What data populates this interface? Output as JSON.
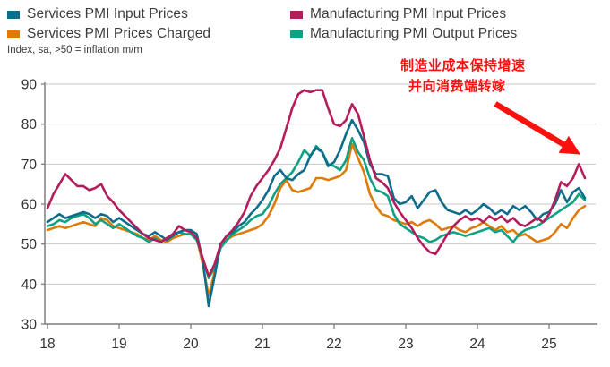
{
  "legend": {
    "items": [
      {
        "label": "Services PMI Input Prices",
        "color": "#0e6d8b"
      },
      {
        "label": "Manufacturing PMI Input Prices",
        "color": "#b41d5b"
      },
      {
        "label": "Services PMI Prices Charged",
        "color": "#dd7b06"
      },
      {
        "label": "Manufacturing PMI Output Prices",
        "color": "#0fa183"
      }
    ]
  },
  "subtitle": "Index, sa, >50 = inflation m/m",
  "annotation": {
    "line1": "制造业成本保持增速",
    "line2": "并向消费端转嫁",
    "color": "#fb100d"
  },
  "chart_data": {
    "type": "line",
    "title": "",
    "x_start": "2018-01",
    "x_frequency": "monthly",
    "x_tick_labels": [
      "18",
      "19",
      "20",
      "21",
      "22",
      "23",
      "24",
      "25"
    ],
    "ylim": [
      30,
      90
    ],
    "yticks": [
      30,
      40,
      50,
      60,
      70,
      80,
      90
    ],
    "grid": "horizontal",
    "legend_position": "top",
    "colors": {
      "grid": "#c9c9c9",
      "axis": "#7f7f7f",
      "tick_text": "#333333"
    },
    "series": [
      {
        "name": "Services PMI Prices Charged",
        "color": "#dd7b06",
        "values": [
          53.5,
          54.0,
          54.5,
          54.0,
          54.5,
          55.0,
          55.5,
          55.0,
          54.5,
          56.5,
          56.0,
          54.5,
          54.0,
          53.5,
          53.0,
          52.5,
          51.5,
          51.0,
          52.0,
          51.0,
          50.5,
          51.5,
          52.0,
          52.5,
          52.5,
          51.5,
          45.0,
          37.0,
          43.0,
          49.5,
          51.0,
          52.0,
          52.5,
          53.0,
          53.5,
          54.0,
          55.0,
          57.0,
          60.0,
          64.0,
          66.0,
          63.5,
          63.0,
          63.5,
          64.0,
          66.5,
          66.5,
          66.0,
          66.5,
          67.0,
          68.5,
          75.0,
          71.5,
          68.0,
          62.5,
          59.5,
          57.5,
          57.0,
          56.0,
          55.5,
          55.0,
          55.5,
          54.5,
          55.5,
          56.0,
          55.0,
          53.5,
          54.0,
          54.5,
          53.5,
          53.0,
          54.0,
          54.5,
          55.5,
          54.5,
          53.5,
          54.5,
          53.0,
          53.5,
          52.0,
          52.5,
          51.5,
          50.5,
          51.0,
          51.5,
          53.0,
          55.0,
          54.0,
          56.5,
          58.5,
          59.5
        ]
      },
      {
        "name": "Manufacturing PMI Output Prices",
        "color": "#0fa183",
        "values": [
          54.5,
          55.0,
          56.0,
          55.5,
          56.5,
          57.0,
          57.5,
          56.5,
          55.0,
          56.0,
          55.0,
          54.0,
          55.0,
          54.0,
          53.0,
          52.0,
          51.5,
          50.5,
          51.5,
          50.5,
          51.5,
          52.5,
          53.0,
          52.5,
          52.5,
          51.0,
          46.5,
          41.5,
          44.0,
          49.0,
          51.0,
          52.5,
          53.5,
          54.5,
          56.0,
          57.0,
          57.5,
          59.5,
          62.5,
          65.0,
          66.5,
          68.0,
          70.5,
          73.5,
          72.0,
          74.5,
          73.0,
          70.0,
          69.5,
          68.5,
          71.0,
          76.5,
          73.0,
          71.0,
          66.5,
          63.5,
          63.0,
          62.0,
          57.5,
          55.0,
          54.0,
          53.0,
          52.0,
          51.5,
          50.5,
          51.0,
          52.0,
          52.5,
          53.0,
          52.5,
          52.0,
          52.5,
          53.0,
          53.5,
          54.0,
          53.0,
          53.5,
          52.0,
          50.5,
          52.5,
          53.5,
          54.0,
          54.5,
          55.5,
          56.5,
          57.5,
          58.5,
          59.5,
          60.5,
          62.5,
          61.0
        ]
      },
      {
        "name": "Services PMI Input Prices",
        "color": "#0e6d8b",
        "values": [
          55.5,
          56.5,
          57.5,
          56.5,
          57.0,
          57.5,
          58.0,
          57.5,
          56.5,
          57.5,
          57.0,
          55.5,
          56.5,
          55.5,
          54.5,
          53.5,
          52.5,
          52.0,
          53.0,
          52.0,
          51.0,
          52.0,
          53.0,
          53.5,
          53.5,
          52.5,
          46.0,
          34.5,
          42.0,
          50.0,
          52.0,
          53.0,
          54.5,
          55.5,
          57.5,
          59.0,
          61.0,
          63.5,
          67.0,
          68.5,
          66.5,
          66.0,
          67.5,
          68.5,
          72.0,
          74.0,
          73.0,
          69.5,
          70.5,
          73.5,
          77.5,
          81.0,
          78.5,
          75.5,
          70.0,
          67.5,
          67.5,
          67.0,
          61.5,
          60.0,
          60.5,
          62.0,
          59.0,
          61.0,
          63.0,
          63.5,
          60.5,
          58.5,
          58.0,
          57.5,
          58.5,
          57.5,
          58.5,
          60.0,
          59.0,
          57.5,
          58.5,
          57.5,
          59.5,
          58.5,
          59.5,
          58.0,
          56.0,
          57.5,
          58.0,
          60.0,
          63.5,
          60.5,
          63.0,
          64.0,
          61.5
        ]
      },
      {
        "name": "Manufacturing PMI Input Prices",
        "color": "#b41d5b",
        "values": [
          59.0,
          62.5,
          65.0,
          67.5,
          66.0,
          64.5,
          64.5,
          63.5,
          64.0,
          65.0,
          62.0,
          60.5,
          58.5,
          57.0,
          55.5,
          54.0,
          52.5,
          51.5,
          51.0,
          50.5,
          51.5,
          52.5,
          54.5,
          53.5,
          53.0,
          51.5,
          46.5,
          42.0,
          45.0,
          50.0,
          52.0,
          53.5,
          55.5,
          58.0,
          62.0,
          64.5,
          66.5,
          68.5,
          71.0,
          74.0,
          79.0,
          84.0,
          87.5,
          88.5,
          88.0,
          88.5,
          88.5,
          84.0,
          80.0,
          79.5,
          81.0,
          85.0,
          82.5,
          77.0,
          71.0,
          66.5,
          65.5,
          64.0,
          60.5,
          58.0,
          56.0,
          54.0,
          51.5,
          49.5,
          48.0,
          47.5,
          50.0,
          52.5,
          54.5,
          56.0,
          57.0,
          56.0,
          56.5,
          55.5,
          57.0,
          56.0,
          57.0,
          55.5,
          56.5,
          55.0,
          54.5,
          55.5,
          56.5,
          55.5,
          57.5,
          61.0,
          65.5,
          64.5,
          66.5,
          70.0,
          66.5
        ]
      }
    ]
  }
}
